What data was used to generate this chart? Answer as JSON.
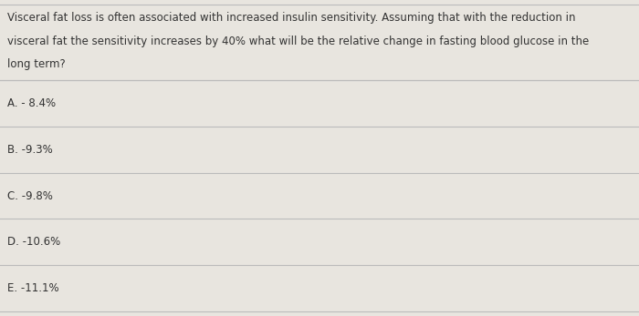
{
  "question_lines": [
    "Visceral fat loss is often associated with increased insulin sensitivity. Assuming that with the reduction in",
    "visceral fat the sensitivity increases by 40% what will be the relative change in fasting blood glucose in the",
    "long term?"
  ],
  "options": [
    "A. - 8.4%",
    "B. -9.3%",
    "C. -9.8%",
    "D. -10.6%",
    "E. -11.1%"
  ],
  "bg_color": "#e8e5df",
  "line_color": "#bbbbbb",
  "text_color": "#333333",
  "font_size": 8.5,
  "question_font_size": 8.5,
  "fig_width": 7.0,
  "fig_height": 3.47,
  "dpi": 100
}
